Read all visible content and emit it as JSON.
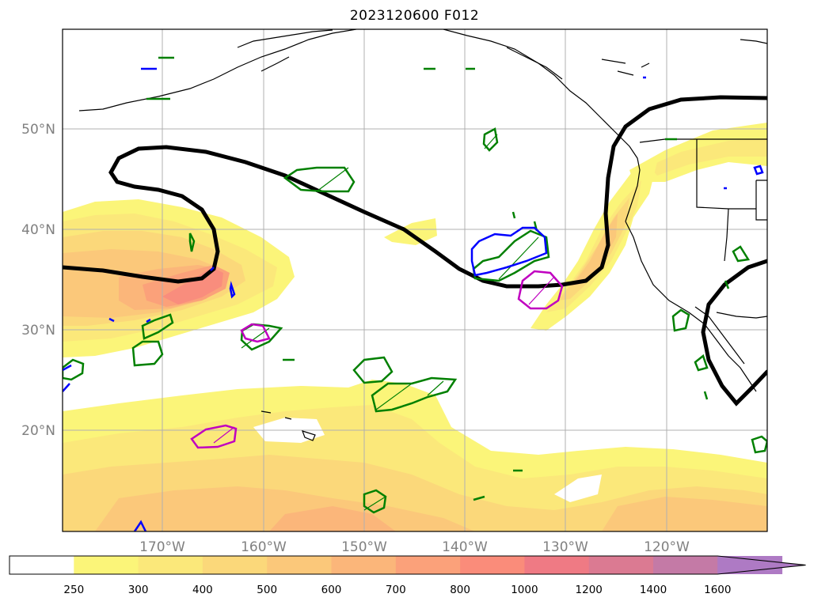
{
  "title": "2023120600 F012",
  "latitude_labels": [
    "50°N",
    "40°N",
    "30°N",
    "20°N"
  ],
  "longitude_labels": [
    "170°W",
    "160°W",
    "150°W",
    "140°W",
    "130°W",
    "120°W"
  ],
  "colorbar": {
    "levels": [
      "250",
      "300",
      "400",
      "500",
      "600",
      "700",
      "800",
      "1000",
      "1200",
      "1400",
      "1600"
    ],
    "colors": [
      "#ffffff",
      "#fbf579",
      "#fbe87a",
      "#fbd87a",
      "#fbc87a",
      "#fbb67a",
      "#fba17a",
      "#fa8c7a",
      "#ef7a84",
      "#db7a92",
      "#c47aa6",
      "#ae7ac4"
    ],
    "extend": "max"
  },
  "contour_colors": {
    "black_line": "#000000",
    "green": "#008000",
    "blue": "#0000ff",
    "magenta": "#c000c0"
  }
}
